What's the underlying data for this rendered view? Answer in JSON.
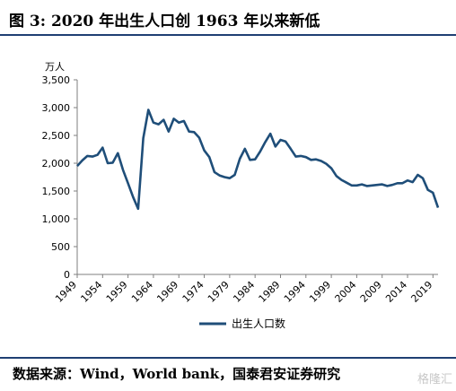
{
  "header": {
    "title": "图 3: 2020 年出生人口创 1963 年以来新低"
  },
  "footer": {
    "source": "数据来源：Wind，World bank，国泰君安证券研究",
    "watermark": "格隆汇"
  },
  "colors": {
    "series": "#1f4e79",
    "rule": "#1f3f73"
  },
  "chart_data": {
    "type": "line",
    "title": "",
    "xlabel": "",
    "ylabel": "万人",
    "xlim": [
      1949,
      2020
    ],
    "ylim": [
      0,
      3500
    ],
    "yticks": [
      0,
      500,
      1000,
      1500,
      2000,
      2500,
      3000,
      3500
    ],
    "ytick_labels": [
      "0",
      "500",
      "1,000",
      "1,500",
      "2,000",
      "2,500",
      "3,000",
      "3,500"
    ],
    "xticks": [
      1949,
      1954,
      1959,
      1964,
      1969,
      1974,
      1979,
      1984,
      1989,
      1994,
      1999,
      2004,
      2009,
      2014,
      2019
    ],
    "legend": {
      "position": "bottom",
      "entries": [
        "出生人口数"
      ]
    },
    "grid": false,
    "series": [
      {
        "name": "出生人口数",
        "x": [
          1949,
          1950,
          1951,
          1952,
          1953,
          1954,
          1955,
          1956,
          1957,
          1958,
          1959,
          1960,
          1961,
          1962,
          1963,
          1964,
          1965,
          1966,
          1967,
          1968,
          1969,
          1970,
          1971,
          1972,
          1973,
          1974,
          1975,
          1976,
          1977,
          1978,
          1979,
          1980,
          1981,
          1982,
          1983,
          1984,
          1985,
          1986,
          1987,
          1988,
          1989,
          1990,
          1991,
          1992,
          1993,
          1994,
          1995,
          1996,
          1997,
          1998,
          1999,
          2000,
          2001,
          2002,
          2003,
          2004,
          2005,
          2006,
          2007,
          2008,
          2009,
          2010,
          2011,
          2012,
          2013,
          2014,
          2015,
          2016,
          2017,
          2018,
          2019,
          2020
        ],
        "values": [
          1950,
          2050,
          2130,
          2120,
          2150,
          2280,
          2000,
          2010,
          2180,
          1880,
          1640,
          1390,
          1180,
          2450,
          2960,
          2730,
          2700,
          2780,
          2570,
          2800,
          2730,
          2760,
          2570,
          2560,
          2460,
          2230,
          2110,
          1840,
          1780,
          1750,
          1730,
          1790,
          2080,
          2260,
          2060,
          2070,
          2210,
          2380,
          2530,
          2300,
          2420,
          2390,
          2260,
          2120,
          2130,
          2110,
          2060,
          2070,
          2040,
          1990,
          1910,
          1770,
          1700,
          1650,
          1600,
          1600,
          1620,
          1590,
          1600,
          1610,
          1620,
          1590,
          1610,
          1640,
          1640,
          1690,
          1660,
          1790,
          1730,
          1520,
          1470,
          1200
        ]
      }
    ]
  }
}
